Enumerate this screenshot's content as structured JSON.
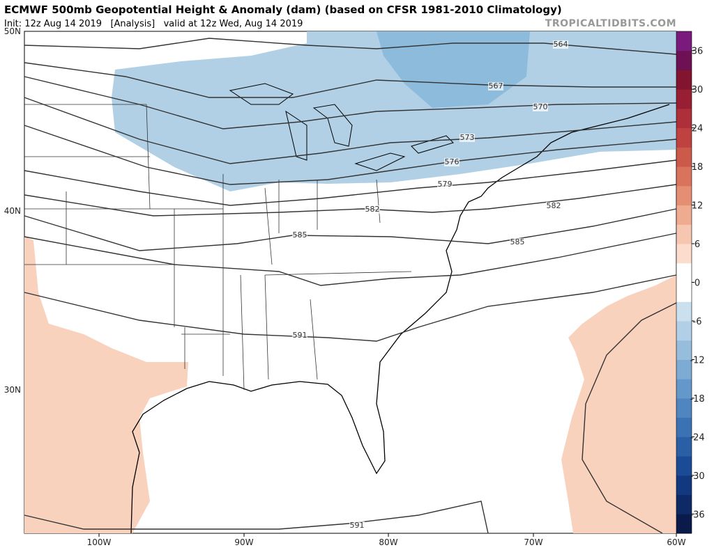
{
  "header": {
    "title": "ECMWF 500mb Geopotential Height & Anomaly (dam) (based on CFSR 1981-2010 Climatology)",
    "subtitle": "Init: 12z Aug 14 2019   [Analysis]   valid at 12z Wed, Aug 14 2019",
    "watermark": "TROPICALTIDBITS.COM"
  },
  "map": {
    "lon_labels": [
      "100W",
      "90W",
      "80W",
      "70W",
      "60W"
    ],
    "lat_labels": [
      "50N",
      "40N",
      "30N"
    ],
    "contour_labels": [
      564,
      567,
      570,
      573,
      576,
      579,
      582,
      582,
      585,
      585,
      591,
      591
    ]
  },
  "colorbar": {
    "lim": [
      -39,
      39
    ],
    "ticks": [
      -36,
      -30,
      -24,
      -18,
      -12,
      -6,
      0,
      6,
      12,
      18,
      24,
      30,
      36
    ],
    "colors": [
      "#0a1a4a",
      "#0d2a66",
      "#12397f",
      "#1a4b94",
      "#2a5fa6",
      "#3b72b4",
      "#4f86c0",
      "#6598ca",
      "#7eabd4",
      "#97bddd",
      "#b1cfe6",
      "#cbe0ee",
      "#ffffff",
      "#ffffff",
      "#fbdccd",
      "#f6c6b0",
      "#eeab90",
      "#e48f74",
      "#d9735c",
      "#cc5a4a",
      "#be4340",
      "#ad2f39",
      "#981f33",
      "#82142f",
      "#6e1054",
      "#7b1a7d"
    ]
  }
}
